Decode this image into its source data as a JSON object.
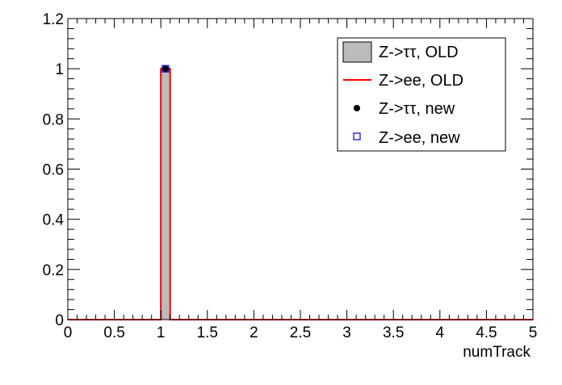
{
  "chart_data": {
    "type": "bar",
    "xlabel": "numTrack",
    "ylabel": "",
    "xlim": [
      0,
      5
    ],
    "ylim": [
      0,
      1.2
    ],
    "bin_width": 0.1,
    "x_tick_labels": [
      "0",
      "0.5",
      "1",
      "1.5",
      "2",
      "2.5",
      "3",
      "3.5",
      "4",
      "4.5",
      "5"
    ],
    "y_tick_labels": [
      "0",
      "0.2",
      "0.4",
      "0.6",
      "0.8",
      "1",
      "1.2"
    ],
    "series": [
      {
        "name": "Z->ττ, OLD",
        "style": "filled-histogram",
        "color": "#bbbbbb",
        "bins": [
          {
            "x": 1.05,
            "y": 1.0
          }
        ]
      },
      {
        "name": "Z->ee, OLD",
        "style": "line-histogram",
        "color": "#ff0000",
        "bins": [
          {
            "x": 1.05,
            "y": 1.0
          }
        ]
      },
      {
        "name": "Z->ττ, new",
        "style": "filled-circle-marker",
        "color": "#000000",
        "points": [
          {
            "x": 1.05,
            "y": 1.0
          }
        ]
      },
      {
        "name": "Z->ee, new",
        "style": "open-square-marker",
        "color": "#0000cc",
        "points": [
          {
            "x": 1.05,
            "y": 1.0
          }
        ]
      }
    ],
    "legend_position": "top-right",
    "grid": false
  }
}
